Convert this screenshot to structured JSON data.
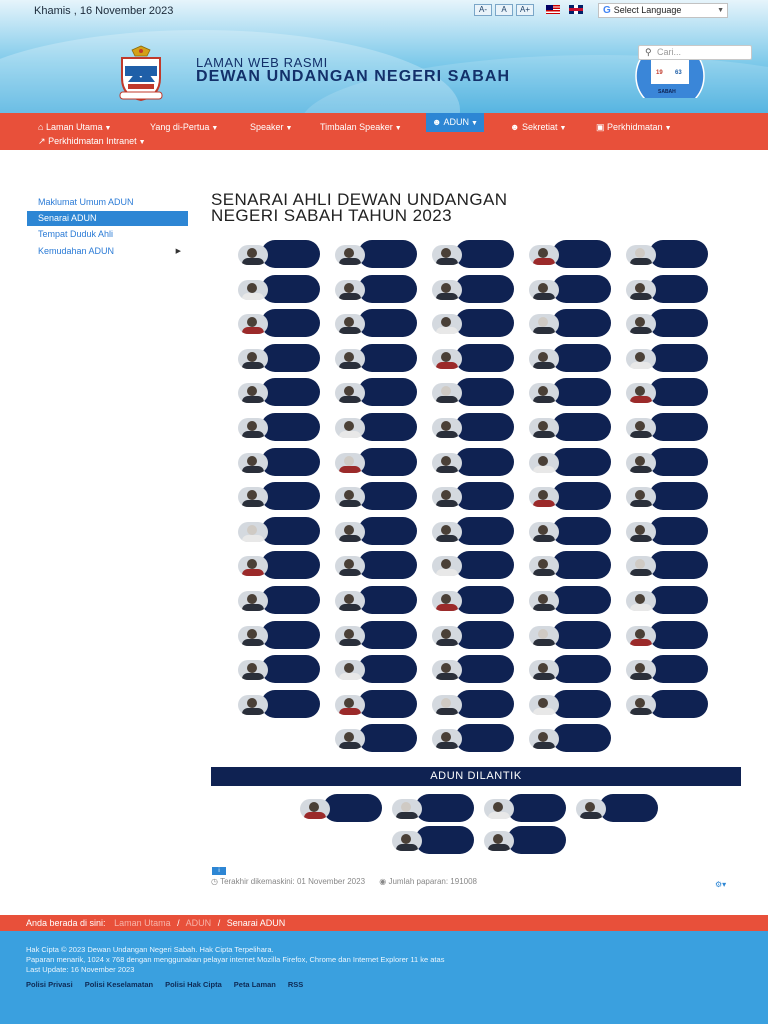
{
  "header": {
    "date": "Khamis , 16 November 2023",
    "font_buttons": [
      "A-",
      "A",
      "A+"
    ],
    "language_select": "Select Language",
    "site_subtitle": "LAMAN WEB RASMI",
    "site_title": "DEWAN UNDANGAN NEGERI SABAH",
    "search_placeholder": "Cari...",
    "badge": {
      "left": "19",
      "right": "63",
      "bottom": "SABAH"
    }
  },
  "nav": {
    "items": [
      {
        "label": "Laman Utama",
        "icon": "home-icon"
      },
      {
        "label": "Yang di-Pertua"
      },
      {
        "label": "Speaker"
      },
      {
        "label": "Timbalan Speaker"
      },
      {
        "label": "ADUN",
        "icon": "users-icon",
        "active": true
      },
      {
        "label": "Sekretiat",
        "icon": "users-icon"
      },
      {
        "label": "Perkhidmatan",
        "icon": "briefcase-icon"
      },
      {
        "label": "Perkhidmatan Intranet",
        "icon": "external-link-icon"
      }
    ]
  },
  "sidebar": {
    "items": [
      {
        "label": "Maklumat Umum ADUN"
      },
      {
        "label": "Senarai ADUN",
        "active": true
      },
      {
        "label": "Tempat Duduk Ahli"
      },
      {
        "label": "Kemudahan ADUN",
        "has_arrow": true
      }
    ]
  },
  "content": {
    "title_line1": "SENARAI AHLI DEWAN UNDANGAN",
    "title_line2": "NEGERI SABAH TAHUN 2023",
    "members_count": 73,
    "dilantik_title": "ADUN DILANTIK",
    "dilantik_count": 6,
    "last_updated": "Terakhir dikemaskini: 01 November 2023",
    "views": "Jumlah paparan: 191008"
  },
  "breadcrumb": {
    "prefix": "Anda berada di sini:",
    "items": [
      "Laman Utama",
      "ADUN",
      "Senarai ADUN"
    ]
  },
  "footer": {
    "copyright": "Hak Cipta © 2023 Dewan Undangan Negeri Sabah. Hak Cipta Terpelihara.",
    "display_note": "Paparan menarik, 1024 x 768 dengan menggunakan pelayar internet Mozilla Firefox, Chrome dan Internet Explorer 11 ke atas",
    "last_update": "Last Update: 16 November 2023",
    "links": [
      "Polisi Privasi",
      "Polisi Keselamatan",
      "Polisi Hak Cipta",
      "Peta Laman",
      "RSS"
    ]
  },
  "colors": {
    "nav_red": "#e8503a",
    "active_blue": "#2d86d4",
    "card_navy": "#0f2252",
    "footer_blue": "#3aa0df"
  }
}
